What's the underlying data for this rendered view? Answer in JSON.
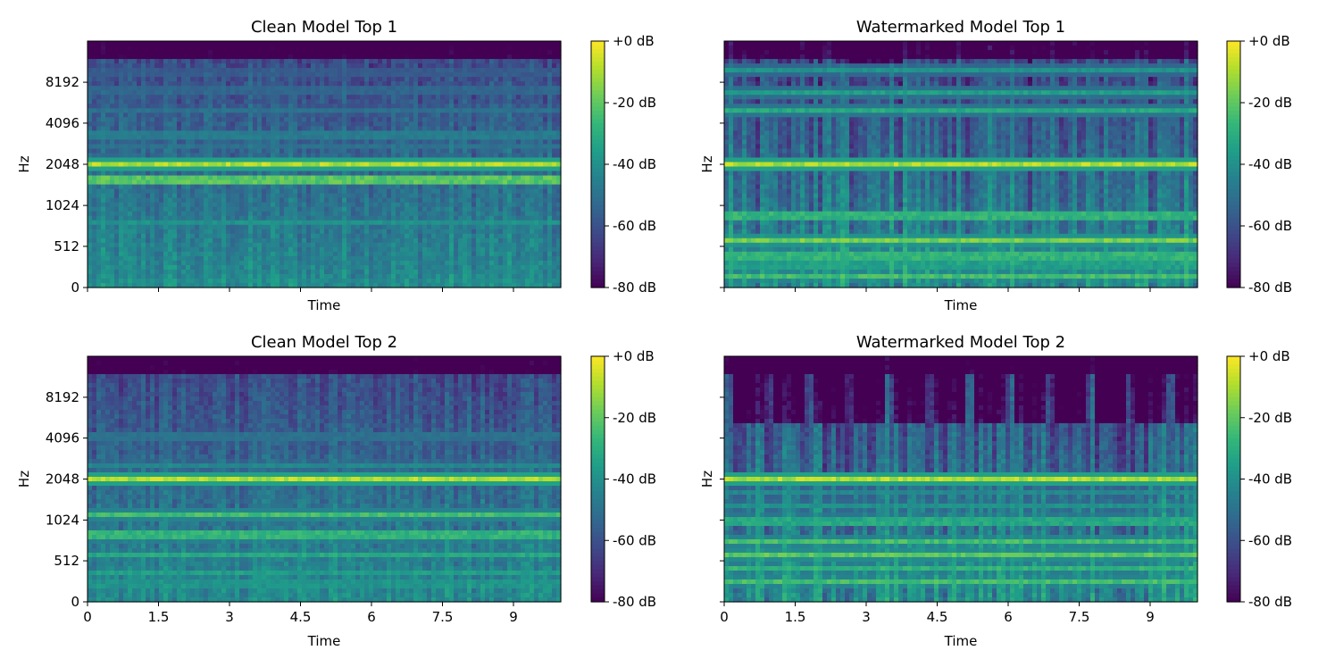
{
  "chart_data": [
    {
      "type": "heatmap",
      "title": "Clean Model Top 1",
      "xlabel": "Time",
      "ylabel": "Hz",
      "xlim": [
        0,
        10.0
      ],
      "x_ticks": [
        0,
        1.5,
        3,
        4.5,
        6,
        7.5,
        9
      ],
      "x_tick_labels_shown": false,
      "y_scale": "log2",
      "y_ticks": [
        "0",
        "512",
        "1024",
        "2048",
        "4096",
        "8192"
      ],
      "y_tick_labels_shown": true,
      "colorbar": {
        "label_ticks": [
          "+0 dB",
          "-20 dB",
          "-40 dB",
          "-60 dB",
          "-80 dB"
        ],
        "range_db": [
          -80,
          0
        ],
        "colormap": "viridis"
      }
    },
    {
      "type": "heatmap",
      "title": "Watermarked Model Top 1",
      "xlabel": "Time",
      "ylabel": "Hz",
      "xlim": [
        0,
        10.0
      ],
      "x_ticks": [
        0,
        1.5,
        3,
        4.5,
        6,
        7.5,
        9
      ],
      "x_tick_labels_shown": false,
      "y_scale": "log2",
      "y_ticks": [
        "0",
        "512",
        "1024",
        "2048",
        "4096",
        "8192"
      ],
      "y_tick_labels_shown": false,
      "colorbar": {
        "label_ticks": [
          "+0 dB",
          "-20 dB",
          "-40 dB",
          "-60 dB",
          "-80 dB"
        ],
        "range_db": [
          -80,
          0
        ],
        "colormap": "viridis"
      }
    },
    {
      "type": "heatmap",
      "title": "Clean Model Top 2",
      "xlabel": "Time",
      "ylabel": "Hz",
      "xlim": [
        0,
        10.0
      ],
      "x_ticks": [
        0,
        1.5,
        3,
        4.5,
        6,
        7.5,
        9
      ],
      "x_tick_labels": [
        "0",
        "1.5",
        "3",
        "4.5",
        "6",
        "7.5",
        "9"
      ],
      "x_tick_labels_shown": true,
      "y_scale": "log2",
      "y_ticks": [
        "0",
        "512",
        "1024",
        "2048",
        "4096",
        "8192"
      ],
      "y_tick_labels_shown": true,
      "colorbar": {
        "label_ticks": [
          "+0 dB",
          "-20 dB",
          "-40 dB",
          "-60 dB",
          "-80 dB"
        ],
        "range_db": [
          -80,
          0
        ],
        "colormap": "viridis"
      }
    },
    {
      "type": "heatmap",
      "title": "Watermarked Model Top 2",
      "xlabel": "Time",
      "ylabel": "Hz",
      "xlim": [
        0,
        10.0
      ],
      "x_ticks": [
        0,
        1.5,
        3,
        4.5,
        6,
        7.5,
        9
      ],
      "x_tick_labels": [
        "0",
        "1.5",
        "3",
        "4.5",
        "6",
        "7.5",
        "9"
      ],
      "x_tick_labels_shown": true,
      "y_scale": "log2",
      "y_ticks": [
        "0",
        "512",
        "1024",
        "2048",
        "4096",
        "8192"
      ],
      "y_tick_labels_shown": false,
      "colorbar": {
        "label_ticks": [
          "+0 dB",
          "-20 dB",
          "-40 dB",
          "-60 dB",
          "-80 dB"
        ],
        "range_db": [
          -80,
          0
        ],
        "colormap": "viridis"
      }
    }
  ]
}
